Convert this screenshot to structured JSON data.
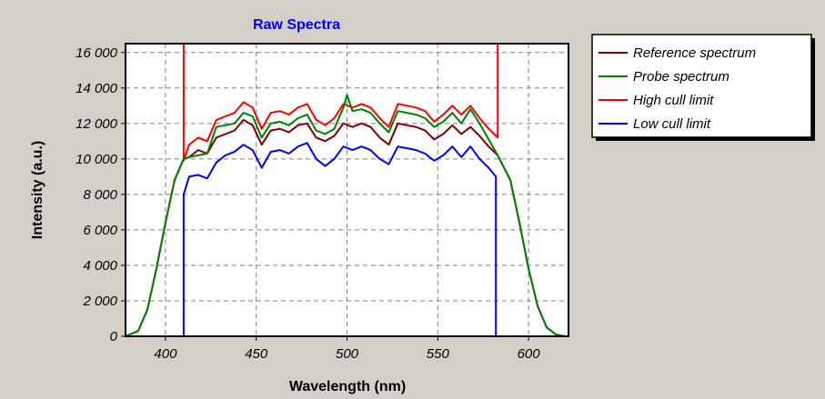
{
  "chart_data": {
    "type": "line",
    "title": "Raw Spectra",
    "xlabel": "Wavelength (nm)",
    "ylabel": "Intensity (a.u.)",
    "xlim": [
      378,
      622
    ],
    "ylim": [
      0,
      16500
    ],
    "xticks": [
      400,
      450,
      500,
      550,
      600
    ],
    "xtick_labels": [
      "400",
      "450",
      "500",
      "550",
      "600"
    ],
    "yticks": [
      0,
      2000,
      4000,
      6000,
      8000,
      10000,
      12000,
      14000,
      16000
    ],
    "ytick_labels": [
      "0",
      "2 000",
      "4 000",
      "6 000",
      "8 000",
      "10 000",
      "12 000",
      "14 000",
      "16 000"
    ],
    "grid": true,
    "legend_position": "right",
    "colors": {
      "title": "#0000ff",
      "background": "#d4d0c8",
      "plot_background": "#ffffff"
    },
    "series": [
      {
        "name": "Reference spectrum",
        "color": "#800000",
        "x": [
          378,
          385,
          390,
          395,
          400,
          405,
          410,
          413,
          418,
          423,
          428,
          433,
          438,
          443,
          448,
          453,
          458,
          463,
          468,
          473,
          478,
          483,
          488,
          493,
          498,
          503,
          508,
          513,
          518,
          523,
          528,
          533,
          538,
          543,
          548,
          553,
          558,
          563,
          568,
          573,
          578,
          583,
          590,
          595,
          600,
          605,
          610,
          615,
          620
        ],
        "y": [
          0,
          300,
          1500,
          3800,
          6400,
          8800,
          10000,
          10100,
          10500,
          10300,
          11200,
          11400,
          11600,
          12200,
          11900,
          10800,
          11600,
          11700,
          11500,
          11900,
          12000,
          11200,
          11000,
          11300,
          12000,
          11800,
          12000,
          11800,
          11200,
          10800,
          12000,
          11900,
          11800,
          11600,
          11100,
          11400,
          11900,
          11400,
          11800,
          11300,
          10700,
          10200,
          8800,
          6400,
          3800,
          1700,
          500,
          100,
          0
        ]
      },
      {
        "name": "Probe spectrum",
        "color": "#008000",
        "x": [
          378,
          385,
          390,
          395,
          400,
          405,
          410,
          413,
          418,
          423,
          428,
          433,
          438,
          443,
          448,
          453,
          458,
          463,
          468,
          473,
          478,
          483,
          488,
          493,
          498,
          500,
          503,
          508,
          513,
          518,
          523,
          528,
          533,
          538,
          543,
          548,
          553,
          558,
          563,
          568,
          573,
          578,
          583,
          590,
          595,
          600,
          605,
          610,
          615,
          620
        ],
        "y": [
          0,
          300,
          1500,
          3800,
          6400,
          8800,
          10000,
          10100,
          10200,
          10300,
          11800,
          11900,
          12000,
          12600,
          12400,
          11200,
          12000,
          12100,
          11900,
          12300,
          12500,
          11600,
          11400,
          11700,
          12900,
          13600,
          12700,
          12800,
          12600,
          12000,
          11500,
          12700,
          12600,
          12500,
          12300,
          11800,
          12100,
          12600,
          12000,
          12800,
          12000,
          11100,
          10200,
          8800,
          6400,
          3800,
          1700,
          500,
          100,
          0
        ]
      },
      {
        "name": "High cull limit",
        "color": "#ff0000",
        "x": [
          410,
          410,
          413,
          418,
          423,
          428,
          433,
          438,
          443,
          448,
          453,
          458,
          463,
          468,
          473,
          478,
          483,
          488,
          493,
          498,
          503,
          508,
          513,
          518,
          523,
          528,
          533,
          538,
          543,
          548,
          553,
          558,
          563,
          568,
          573,
          578,
          583,
          583
        ],
        "y": [
          16500,
          9900,
          10800,
          11200,
          11000,
          12200,
          12400,
          12600,
          13200,
          12900,
          11700,
          12600,
          12700,
          12500,
          12900,
          13100,
          12200,
          11900,
          12300,
          13100,
          12900,
          13100,
          12900,
          12300,
          11800,
          13100,
          13000,
          12900,
          12700,
          12100,
          12500,
          13000,
          12500,
          13000,
          12300,
          11700,
          11200,
          16500
        ]
      },
      {
        "name": "Low cull limit",
        "color": "#0000ff",
        "x": [
          410,
          410,
          413,
          418,
          423,
          428,
          433,
          438,
          443,
          448,
          453,
          458,
          463,
          468,
          473,
          478,
          483,
          488,
          493,
          498,
          503,
          508,
          513,
          518,
          523,
          528,
          533,
          538,
          543,
          548,
          553,
          558,
          563,
          568,
          573,
          578,
          582,
          582
        ],
        "y": [
          0,
          8000,
          9000,
          9100,
          8900,
          9800,
          10200,
          10400,
          10800,
          10500,
          9500,
          10400,
          10500,
          10300,
          10700,
          10900,
          10000,
          9600,
          10000,
          10700,
          10500,
          10700,
          10500,
          10000,
          9700,
          10700,
          10600,
          10500,
          10300,
          9900,
          10200,
          10700,
          10100,
          10700,
          10000,
          9500,
          9000,
          0
        ]
      }
    ]
  }
}
